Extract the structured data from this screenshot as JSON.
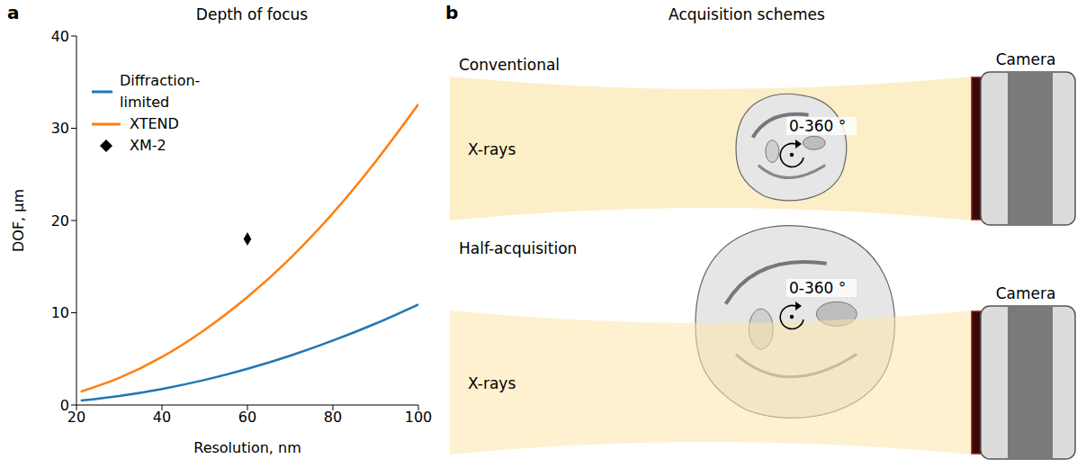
{
  "chart_data": {
    "type": "line",
    "title": "Depth of focus",
    "x_label": "Resolution, nm",
    "y_label": "DOF, μm",
    "xlim": [
      20,
      100
    ],
    "xticks": [
      20,
      40,
      60,
      80,
      100
    ],
    "ylim": [
      0,
      40
    ],
    "yticks": [
      0,
      10,
      20,
      30,
      40
    ],
    "legend": "upper left",
    "series": [
      {
        "name": "Diffraction-limited",
        "color": "#1f77b4",
        "type": "line",
        "x": [
          21,
          30,
          40,
          50,
          60,
          70,
          80,
          90,
          100
        ],
        "values": [
          0.48,
          0.98,
          1.74,
          2.72,
          3.92,
          5.34,
          6.98,
          8.83,
          10.9
        ]
      },
      {
        "name": "XTEND",
        "color": "#ff7f0e",
        "type": "line",
        "x": [
          21,
          30,
          40,
          50,
          60,
          70,
          80,
          90,
          100
        ],
        "values": [
          1.44,
          2.93,
          5.2,
          8.15,
          11.7,
          15.9,
          20.8,
          26.4,
          32.6
        ]
      },
      {
        "name": "XM-2",
        "color": "#000000",
        "type": "scatter",
        "marker": "diamond",
        "x": [
          60
        ],
        "values": [
          18
        ]
      }
    ]
  },
  "panel_labels": [
    "a",
    "b"
  ],
  "diagram": {
    "title": "Acquisition schemes",
    "schemes": [
      {
        "label": "Conventional",
        "beam": "X-rays",
        "rotation": "0-360 °",
        "detector": "Camera"
      },
      {
        "label": "Half-acquisition",
        "beam": "X-rays",
        "rotation": "0-360 °",
        "detector": "Camera"
      }
    ]
  }
}
